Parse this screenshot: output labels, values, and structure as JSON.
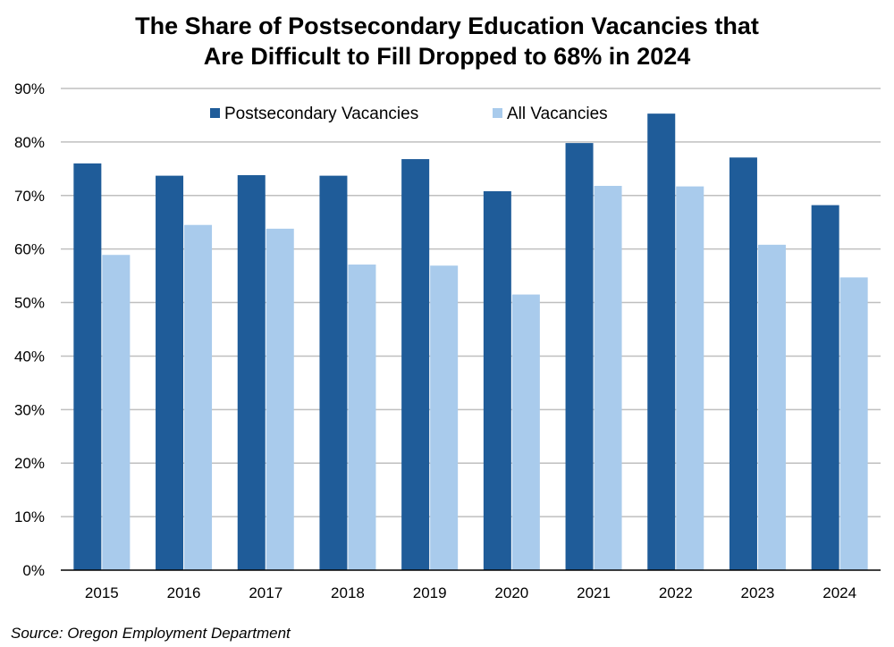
{
  "chart_data": {
    "type": "bar",
    "title": [
      "The Share of Postsecondary Education Vacancies that",
      "Are Difficult to Fill Dropped to 68% in 2024"
    ],
    "categories": [
      "2015",
      "2016",
      "2017",
      "2018",
      "2019",
      "2020",
      "2021",
      "2022",
      "2023",
      "2024"
    ],
    "series": [
      {
        "name": "Postsecondary Vacancies",
        "color": "#1F5C99",
        "values": [
          76,
          73.7,
          73.8,
          73.7,
          76.8,
          70.8,
          79.8,
          85.3,
          77.1,
          68.2
        ]
      },
      {
        "name": "All Vacancies",
        "color": "#A9CBEC",
        "values": [
          58.9,
          64.5,
          63.8,
          57.1,
          56.9,
          51.5,
          71.8,
          71.7,
          60.8,
          54.7
        ]
      }
    ],
    "ylim": [
      0,
      90
    ],
    "yticks": [
      0,
      10,
      20,
      30,
      40,
      50,
      60,
      70,
      80,
      90
    ],
    "ytick_labels": [
      "0%",
      "10%",
      "20%",
      "30%",
      "40%",
      "50%",
      "60%",
      "70%",
      "80%",
      "90%"
    ],
    "grid": true,
    "legend_position": "top-center"
  },
  "source": "Source: Oregon Employment Department"
}
